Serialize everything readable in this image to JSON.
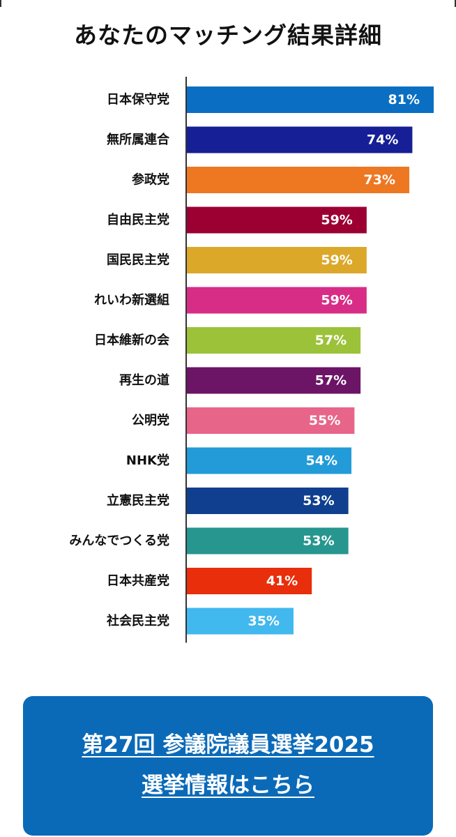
{
  "title": "あなたのマッチング結果詳細",
  "chart_data": {
    "type": "bar",
    "orientation": "horizontal",
    "title": "",
    "xlabel": "",
    "ylabel": "",
    "xlim": [
      0,
      81
    ],
    "grid": false,
    "categories": [
      "日本保守党",
      "無所属連合",
      "参政党",
      "自由民主党",
      "国民民主党",
      "れいわ新選組",
      "日本維新の会",
      "再生の道",
      "公明党",
      "NHK党",
      "立憲民主党",
      "みんなでつくる党",
      "日本共産党",
      "社会民主党"
    ],
    "values": [
      81,
      74,
      73,
      59,
      59,
      59,
      57,
      57,
      55,
      54,
      53,
      53,
      41,
      35
    ],
    "value_labels": [
      "81%",
      "74%",
      "73%",
      "59%",
      "59%",
      "59%",
      "57%",
      "57%",
      "55%",
      "54%",
      "53%",
      "53%",
      "41%",
      "35%"
    ],
    "colors": [
      "#0a6fc2",
      "#161f96",
      "#ee7722",
      "#9c0033",
      "#dca82a",
      "#d82d87",
      "#9cc23a",
      "#6c1465",
      "#e8658a",
      "#229bd8",
      "#103f8f",
      "#26968f",
      "#e82e0a",
      "#41b8ee"
    ]
  },
  "cta": {
    "line1": "第27回 参議院議員選挙2025",
    "line2": "選挙情報はこちら",
    "color": "#0a6ab8"
  }
}
